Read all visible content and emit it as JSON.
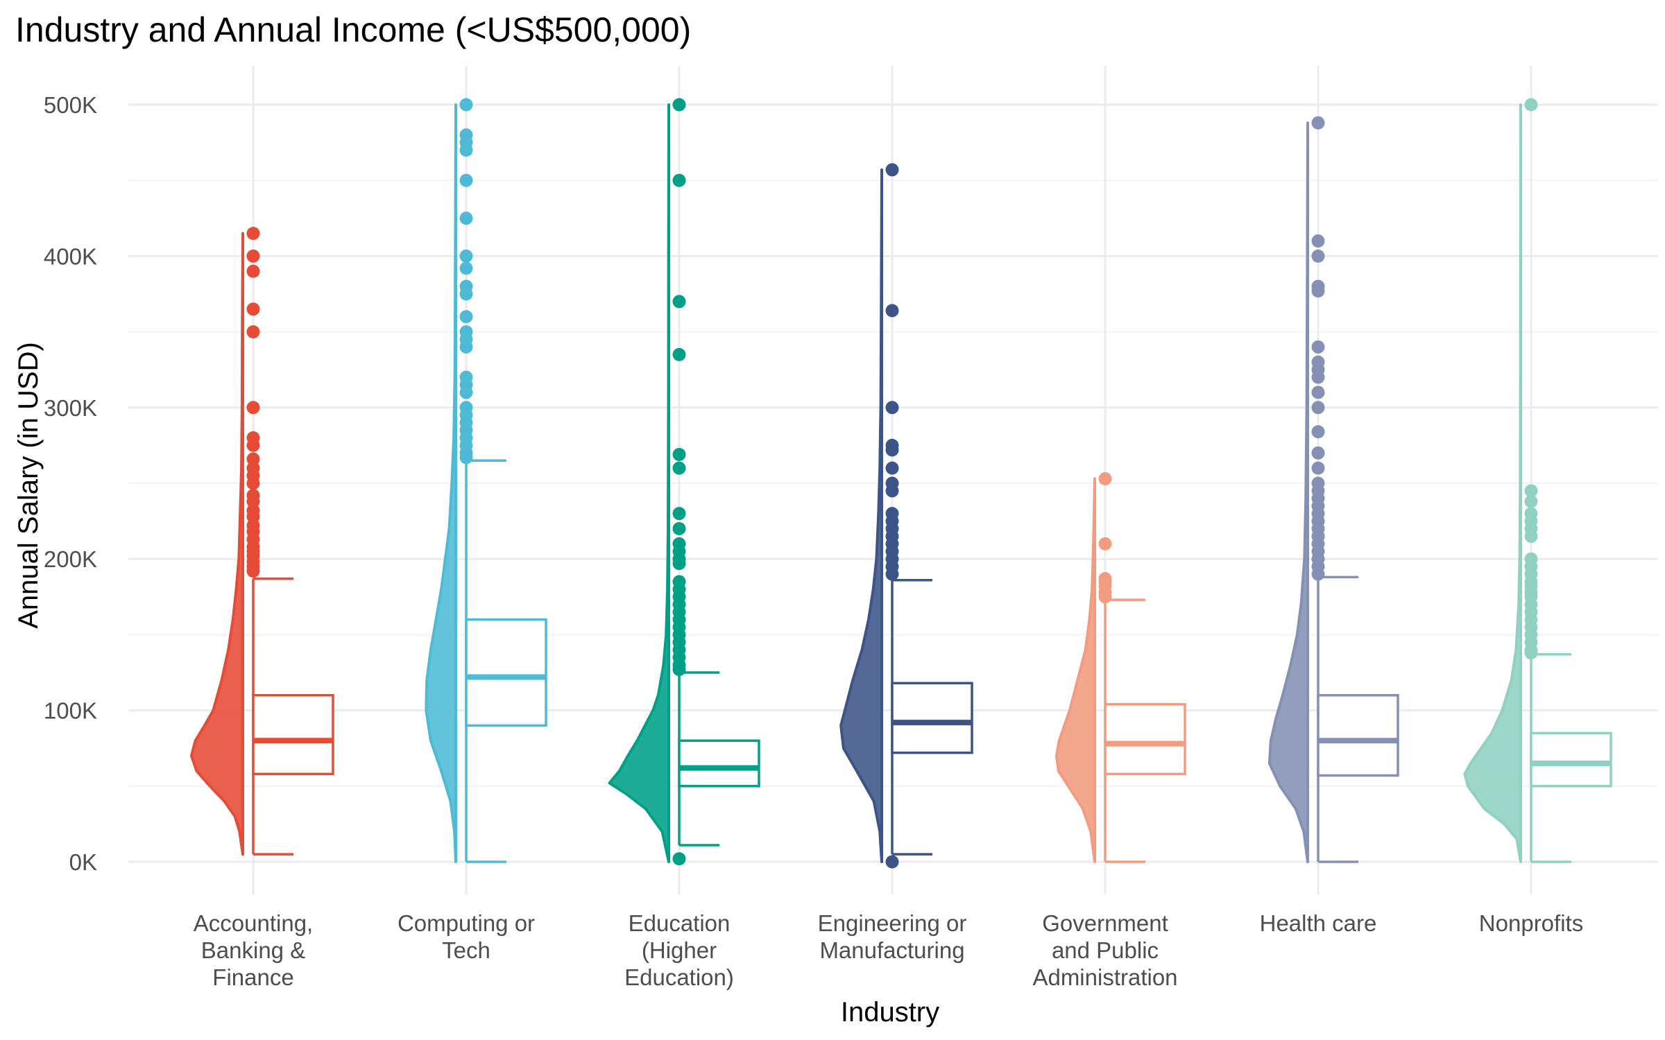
{
  "chart_data": {
    "type": "raincloud",
    "title": "Industry and Annual Income (<US$500,000)",
    "xlabel": "Industry",
    "ylabel": "Annual Salary (in USD)",
    "ylim": [
      -20000,
      525000
    ],
    "y_ticks": [
      0,
      100000,
      200000,
      300000,
      400000,
      500000
    ],
    "y_tick_labels": [
      "0K",
      "100K",
      "200K",
      "300K",
      "400K",
      "500K"
    ],
    "grid": true,
    "legend": "none",
    "categories": [
      {
        "label_lines": [
          "Accounting,",
          "Banking &",
          "Finance"
        ],
        "color": "#E64B35",
        "box": {
          "whisker_low": 5000,
          "q1": 58000,
          "median": 80000,
          "q3": 110000,
          "whisker_high": 187000
        },
        "density": [
          [
            5000,
            0.0
          ],
          [
            20000,
            0.05
          ],
          [
            30000,
            0.12
          ],
          [
            40000,
            0.28
          ],
          [
            50000,
            0.5
          ],
          [
            60000,
            0.7
          ],
          [
            70000,
            0.78
          ],
          [
            80000,
            0.72
          ],
          [
            90000,
            0.58
          ],
          [
            100000,
            0.45
          ],
          [
            120000,
            0.32
          ],
          [
            140000,
            0.22
          ],
          [
            160000,
            0.15
          ],
          [
            180000,
            0.1
          ],
          [
            200000,
            0.06
          ],
          [
            230000,
            0.04
          ],
          [
            260000,
            0.02
          ],
          [
            300000,
            0.012
          ],
          [
            350000,
            0.008
          ],
          [
            415000,
            0.0
          ]
        ],
        "outliers": [
          415000,
          400000,
          390000,
          365000,
          350000,
          300000,
          280000,
          275000,
          266000,
          260000,
          255000,
          250000,
          242000,
          238000,
          232000,
          228000,
          222000,
          218000,
          213000,
          208000,
          205000,
          202000,
          198000,
          195000,
          192000
        ]
      },
      {
        "label_lines": [
          "Computing or",
          "Tech"
        ],
        "color": "#4DBBD5",
        "box": {
          "whisker_low": 0,
          "q1": 90000,
          "median": 122000,
          "q3": 160000,
          "whisker_high": 265000
        },
        "density": [
          [
            0,
            0.0
          ],
          [
            20000,
            0.02
          ],
          [
            40000,
            0.08
          ],
          [
            60000,
            0.22
          ],
          [
            80000,
            0.38
          ],
          [
            100000,
            0.45
          ],
          [
            120000,
            0.44
          ],
          [
            140000,
            0.38
          ],
          [
            160000,
            0.3
          ],
          [
            180000,
            0.22
          ],
          [
            200000,
            0.16
          ],
          [
            220000,
            0.1
          ],
          [
            250000,
            0.06
          ],
          [
            280000,
            0.03
          ],
          [
            320000,
            0.015
          ],
          [
            380000,
            0.008
          ],
          [
            440000,
            0.004
          ],
          [
            500000,
            0.0
          ]
        ],
        "outliers": [
          500000,
          480000,
          475000,
          470000,
          450000,
          425000,
          400000,
          392000,
          380000,
          375000,
          360000,
          350000,
          345000,
          340000,
          320000,
          315000,
          310000,
          300000,
          295000,
          290000,
          285000,
          280000,
          275000,
          270000,
          267000
        ]
      },
      {
        "label_lines": [
          "Education",
          "(Higher",
          "Education)"
        ],
        "color": "#00A087",
        "box": {
          "whisker_low": 11000,
          "q1": 50000,
          "median": 62000,
          "q3": 80000,
          "whisker_high": 125000
        },
        "density": [
          [
            0,
            0.0
          ],
          [
            20000,
            0.1
          ],
          [
            35000,
            0.35
          ],
          [
            45000,
            0.65
          ],
          [
            52000,
            0.9
          ],
          [
            60000,
            0.75
          ],
          [
            70000,
            0.62
          ],
          [
            80000,
            0.48
          ],
          [
            90000,
            0.36
          ],
          [
            100000,
            0.24
          ],
          [
            110000,
            0.16
          ],
          [
            130000,
            0.08
          ],
          [
            150000,
            0.04
          ],
          [
            180000,
            0.02
          ],
          [
            220000,
            0.01
          ],
          [
            300000,
            0.005
          ],
          [
            400000,
            0.003
          ],
          [
            500000,
            0.0
          ]
        ],
        "outliers": [
          500000,
          450000,
          370000,
          335000,
          269000,
          260000,
          230000,
          220000,
          210000,
          205000,
          200000,
          197000,
          185000,
          180000,
          175000,
          170000,
          165000,
          160000,
          155000,
          150000,
          145000,
          140000,
          135000,
          130000,
          127000,
          2000
        ]
      },
      {
        "label_lines": [
          "Engineering or",
          "Manufacturing"
        ],
        "color": "#3C5488",
        "box": {
          "whisker_low": 5000,
          "q1": 72000,
          "median": 92000,
          "q3": 118000,
          "whisker_high": 186000
        },
        "density": [
          [
            0,
            0.0
          ],
          [
            20000,
            0.03
          ],
          [
            40000,
            0.12
          ],
          [
            60000,
            0.38
          ],
          [
            75000,
            0.58
          ],
          [
            90000,
            0.62
          ],
          [
            100000,
            0.56
          ],
          [
            120000,
            0.44
          ],
          [
            140000,
            0.3
          ],
          [
            160000,
            0.2
          ],
          [
            180000,
            0.13
          ],
          [
            200000,
            0.08
          ],
          [
            230000,
            0.05
          ],
          [
            260000,
            0.03
          ],
          [
            300000,
            0.015
          ],
          [
            360000,
            0.008
          ],
          [
            457000,
            0.0
          ]
        ],
        "outliers": [
          457000,
          364000,
          300000,
          275000,
          272000,
          260000,
          250000,
          245000,
          230000,
          225000,
          220000,
          215000,
          210000,
          205000,
          200000,
          195000,
          190000,
          0
        ]
      },
      {
        "label_lines": [
          "Government",
          "and Public",
          "Administration"
        ],
        "color": "#F39B7F",
        "box": {
          "whisker_low": 0,
          "q1": 58000,
          "median": 78000,
          "q3": 104000,
          "whisker_high": 173000
        },
        "density": [
          [
            0,
            0.0
          ],
          [
            20000,
            0.06
          ],
          [
            35000,
            0.18
          ],
          [
            50000,
            0.4
          ],
          [
            60000,
            0.55
          ],
          [
            70000,
            0.58
          ],
          [
            80000,
            0.54
          ],
          [
            90000,
            0.46
          ],
          [
            100000,
            0.38
          ],
          [
            120000,
            0.26
          ],
          [
            140000,
            0.14
          ],
          [
            160000,
            0.08
          ],
          [
            180000,
            0.04
          ],
          [
            210000,
            0.02
          ],
          [
            253000,
            0.0
          ]
        ],
        "outliers": [
          253000,
          210000,
          187000,
          185000,
          182000,
          178000,
          175000
        ]
      },
      {
        "label_lines": [
          "Health care"
        ],
        "color": "#8491B4",
        "box": {
          "whisker_low": 0,
          "q1": 57000,
          "median": 80000,
          "q3": 110000,
          "whisker_high": 188000
        },
        "density": [
          [
            0,
            0.0
          ],
          [
            20000,
            0.06
          ],
          [
            35000,
            0.18
          ],
          [
            50000,
            0.42
          ],
          [
            65000,
            0.58
          ],
          [
            80000,
            0.56
          ],
          [
            95000,
            0.48
          ],
          [
            110000,
            0.38
          ],
          [
            130000,
            0.26
          ],
          [
            150000,
            0.16
          ],
          [
            170000,
            0.1
          ],
          [
            200000,
            0.05
          ],
          [
            240000,
            0.03
          ],
          [
            300000,
            0.015
          ],
          [
            380000,
            0.007
          ],
          [
            488000,
            0.0
          ]
        ],
        "outliers": [
          488000,
          410000,
          400000,
          380000,
          377000,
          340000,
          330000,
          325000,
          320000,
          310000,
          300000,
          284000,
          270000,
          260000,
          250000,
          245000,
          240000,
          235000,
          230000,
          225000,
          220000,
          215000,
          210000,
          205000,
          200000,
          195000,
          190000
        ]
      },
      {
        "label_lines": [
          "Nonprofits"
        ],
        "color": "#91D1C2",
        "box": {
          "whisker_low": 0,
          "q1": 50000,
          "median": 65000,
          "q3": 85000,
          "whisker_high": 137000
        },
        "density": [
          [
            0,
            0.0
          ],
          [
            15000,
            0.06
          ],
          [
            25000,
            0.25
          ],
          [
            35000,
            0.55
          ],
          [
            50000,
            0.8
          ],
          [
            58000,
            0.85
          ],
          [
            65000,
            0.76
          ],
          [
            75000,
            0.6
          ],
          [
            85000,
            0.44
          ],
          [
            100000,
            0.28
          ],
          [
            120000,
            0.14
          ],
          [
            140000,
            0.07
          ],
          [
            170000,
            0.03
          ],
          [
            200000,
            0.015
          ],
          [
            250000,
            0.006
          ],
          [
            350000,
            0.003
          ],
          [
            500000,
            0.0
          ]
        ],
        "outliers": [
          500000,
          245000,
          238000,
          230000,
          225000,
          220000,
          215000,
          200000,
          195000,
          190000,
          185000,
          182000,
          178000,
          175000,
          170000,
          165000,
          160000,
          155000,
          150000,
          145000,
          140000,
          138000
        ]
      }
    ]
  }
}
